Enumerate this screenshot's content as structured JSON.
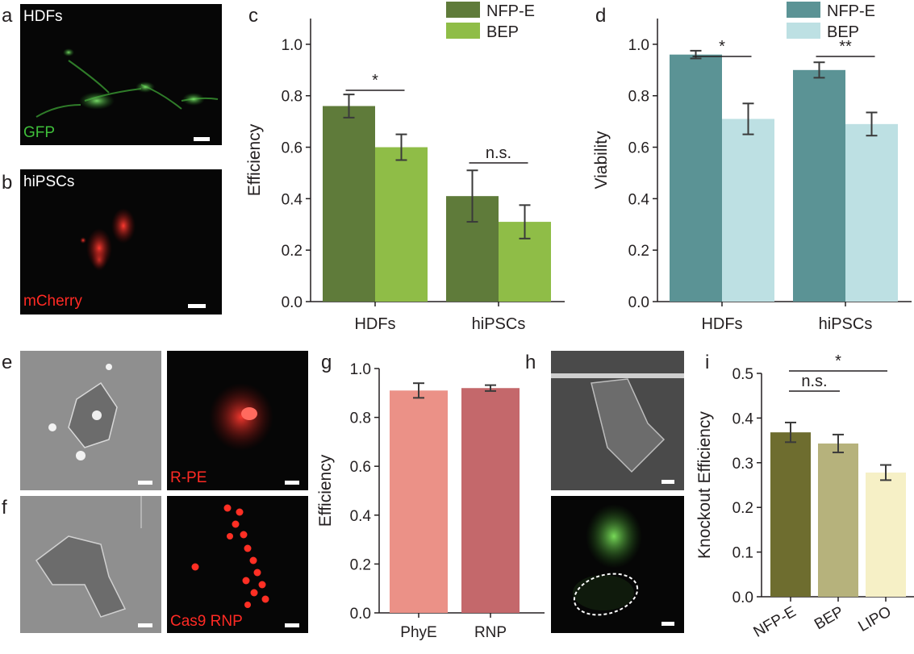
{
  "panels": {
    "a": {
      "letter": "a",
      "top_label": "HDFs",
      "bottom_label": "GFP"
    },
    "b": {
      "letter": "b",
      "top_label": "hiPSCs",
      "bottom_label": "mCherry"
    },
    "c": {
      "letter": "c"
    },
    "d": {
      "letter": "d"
    },
    "e": {
      "letter": "e",
      "fluor_label": "R-PE"
    },
    "f": {
      "letter": "f",
      "fluor_label": "Cas9 RNP"
    },
    "g": {
      "letter": "g"
    },
    "h": {
      "letter": "h"
    },
    "i": {
      "letter": "i"
    }
  },
  "colors": {
    "c_nfpe": "#5f7b3a",
    "c_bep": "#8fbd47",
    "d_nfpe": "#5b9395",
    "d_bep": "#bde0e3",
    "g_phye": "#eb9187",
    "g_rnp": "#c4686b",
    "i_nfpe": "#6e6d2f",
    "i_bep": "#b6b27c",
    "i_lipo": "#f6f0c6",
    "gfp": "#3fbf3a",
    "mcherry": "#ff2a24"
  },
  "chart_data": [
    {
      "panel": "c",
      "type": "bar",
      "categories": [
        "HDFs",
        "hiPSCs"
      ],
      "series": [
        {
          "name": "NFP-E",
          "values": [
            0.76,
            0.41
          ],
          "errors": [
            0.045,
            0.1
          ]
        },
        {
          "name": "BEP",
          "values": [
            0.6,
            0.31
          ],
          "errors": [
            0.05,
            0.065
          ]
        }
      ],
      "ylabel": "Efficiency",
      "ylim": [
        0,
        1.1
      ],
      "yticks": [
        "0.0",
        "0.2",
        "0.4",
        "0.6",
        "0.8",
        "1.0"
      ],
      "legend": "top-right",
      "annotations": [
        {
          "text": "*",
          "between": [
            0,
            0
          ]
        },
        {
          "text": "n.s.",
          "between": [
            1,
            1
          ]
        }
      ]
    },
    {
      "panel": "d",
      "type": "bar",
      "categories": [
        "HDFs",
        "hiPSCs"
      ],
      "series": [
        {
          "name": "NFP-E",
          "values": [
            0.96,
            0.9
          ],
          "errors": [
            0.015,
            0.03
          ]
        },
        {
          "name": "BEP",
          "values": [
            0.71,
            0.69
          ],
          "errors": [
            0.06,
            0.045
          ]
        }
      ],
      "ylabel": "Viability",
      "ylim": [
        0,
        1.1
      ],
      "yticks": [
        "0.0",
        "0.2",
        "0.4",
        "0.6",
        "0.8",
        "1.0"
      ],
      "legend": "top-right",
      "annotations": [
        {
          "text": "*",
          "between": [
            0,
            0
          ]
        },
        {
          "text": "**",
          "between": [
            1,
            1
          ]
        }
      ]
    },
    {
      "panel": "g",
      "type": "bar",
      "categories": [
        "PhyE",
        "RNP"
      ],
      "values": [
        0.91,
        0.92
      ],
      "errors": [
        0.03,
        0.012
      ],
      "ylabel": "Efficiency",
      "ylim": [
        0,
        1.0
      ],
      "yticks": [
        "0.0",
        "0.2",
        "0.4",
        "0.6",
        "0.8",
        "1.0"
      ]
    },
    {
      "panel": "i",
      "type": "bar",
      "categories": [
        "NFP-E",
        "BEP",
        "LIPO"
      ],
      "values": [
        0.368,
        0.343,
        0.278
      ],
      "errors": [
        0.022,
        0.02,
        0.017
      ],
      "ylabel": "Knockout Efficiency",
      "ylim": [
        0,
        0.5
      ],
      "yticks": [
        "0.0",
        "0.1",
        "0.2",
        "0.3",
        "0.4",
        "0.5"
      ],
      "annotations": [
        {
          "text": "n.s.",
          "between": [
            0,
            1
          ]
        },
        {
          "text": "*",
          "between": [
            0,
            2
          ]
        }
      ]
    }
  ]
}
